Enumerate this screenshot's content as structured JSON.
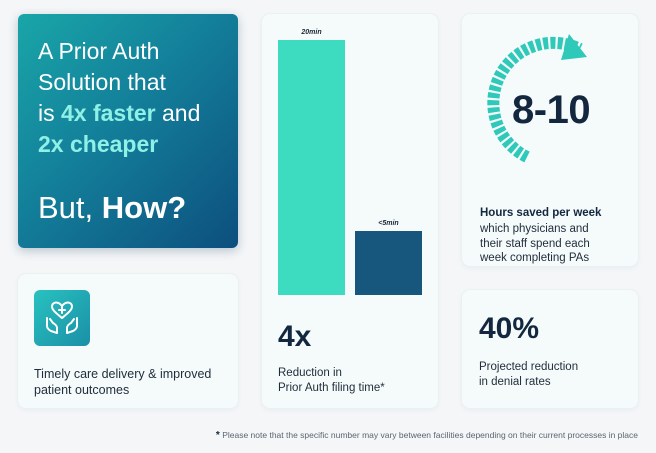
{
  "hero": {
    "line1": "A Prior Auth",
    "line2": "Solution that",
    "line3_pre": "is ",
    "line3_accent": "4x faster",
    "line3_post": " and",
    "line4_accent": "2x cheaper",
    "how_pre": "But, ",
    "how_bold": "How?"
  },
  "timely": {
    "icon": "hands-heart-icon",
    "text_line1": "Timely care delivery & improved",
    "text_line2": "patient outcomes"
  },
  "chart": {
    "stat": "4x",
    "desc_line1": "Reduction in",
    "desc_line2": "Prior Auth filing time*"
  },
  "chart_data": {
    "type": "bar",
    "categories": [
      "",
      ""
    ],
    "values": [
      20,
      5
    ],
    "data_labels": [
      "20min",
      "<5min"
    ],
    "colors": [
      "#3ddcc0",
      "#17577d"
    ],
    "ylim": [
      0,
      20
    ]
  },
  "hours": {
    "number": "8-10",
    "title": "Hours saved per week",
    "text_line1": "which physicians and",
    "text_line2": "their staff spend each",
    "text_line3": "week completing PAs",
    "arrow_color": "#2ec9b9"
  },
  "denial": {
    "number": "40%",
    "text_line1": "Projected reduction",
    "text_line2": "in denial rates"
  },
  "footnote": {
    "star": "*",
    "text": "Please note that the specific number may vary between facilities depending on their current processes in place"
  }
}
